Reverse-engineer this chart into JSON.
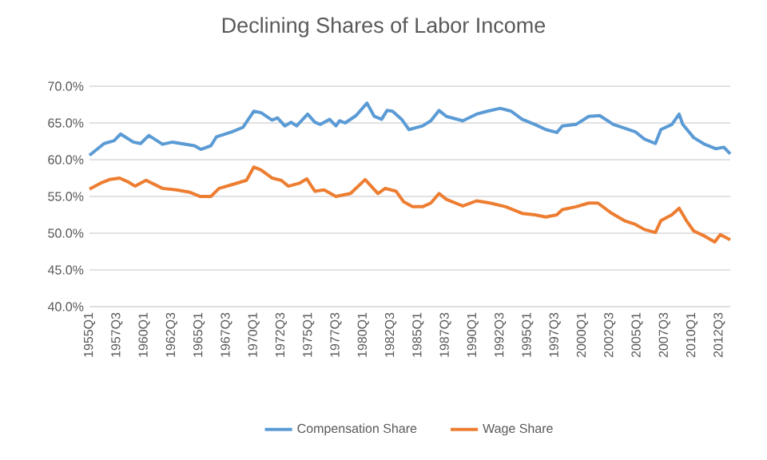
{
  "chart_data": {
    "type": "line",
    "title": "Declining Shares of Labor Income",
    "xlim": [
      "1955-01",
      "2013-07"
    ],
    "ylim": [
      40,
      70
    ],
    "xticks": [
      {
        "value": "1955-01",
        "label": "1955Q1"
      },
      {
        "value": "1957-07",
        "label": "1957Q3"
      },
      {
        "value": "1960-01",
        "label": "1960Q1"
      },
      {
        "value": "1962-07",
        "label": "1962Q3"
      },
      {
        "value": "1965-01",
        "label": "1965Q1"
      },
      {
        "value": "1967-07",
        "label": "1967Q3"
      },
      {
        "value": "1970-01",
        "label": "1970Q1"
      },
      {
        "value": "1972-07",
        "label": "1972Q3"
      },
      {
        "value": "1975-01",
        "label": "1975Q1"
      },
      {
        "value": "1977-07",
        "label": "1977Q3"
      },
      {
        "value": "1980-01",
        "label": "1980Q1"
      },
      {
        "value": "1982-07",
        "label": "1982Q3"
      },
      {
        "value": "1985-01",
        "label": "1985Q1"
      },
      {
        "value": "1987-07",
        "label": "1987Q3"
      },
      {
        "value": "1990-01",
        "label": "1990Q1"
      },
      {
        "value": "1992-07",
        "label": "1992Q3"
      },
      {
        "value": "1995-01",
        "label": "1995Q1"
      },
      {
        "value": "1997-07",
        "label": "1997Q3"
      },
      {
        "value": "2000-01",
        "label": "2000Q1"
      },
      {
        "value": "2002-07",
        "label": "2002Q3"
      },
      {
        "value": "2005-01",
        "label": "2005Q1"
      },
      {
        "value": "2007-07",
        "label": "2007Q3"
      },
      {
        "value": "2010-01",
        "label": "2010Q1"
      },
      {
        "value": "2012-07",
        "label": "2012Q3"
      }
    ],
    "yticks": [
      {
        "value": 40,
        "label": "40.0%"
      },
      {
        "value": 45,
        "label": "45.0%"
      },
      {
        "value": 50,
        "label": "50.0%"
      },
      {
        "value": 55,
        "label": "55.0%"
      },
      {
        "value": 60,
        "label": "60.0%"
      },
      {
        "value": 65,
        "label": "65.0%"
      },
      {
        "value": 70,
        "label": "70.0%"
      }
    ],
    "grid": "y",
    "legend": "bottom",
    "marker": "none",
    "line_style": "solid",
    "series": [
      {
        "name": "Compensation Share",
        "color": "#5b9bd5",
        "x": [
          "1955-01",
          "1956-05",
          "1957-04",
          "1957-11",
          "1959-01",
          "1959-09",
          "1960-06",
          "1961-09",
          "1962-08",
          "1964-08",
          "1965-03",
          "1966-02",
          "1966-08",
          "1968-01",
          "1969-01",
          "1970-01",
          "1970-09",
          "1971-09",
          "1972-03",
          "1972-11",
          "1973-06",
          "1973-12",
          "1974-12",
          "1975-08",
          "1976-02",
          "1976-12",
          "1977-07",
          "1977-11",
          "1978-05",
          "1979-05",
          "1980-05",
          "1981-01",
          "1981-09",
          "1982-03",
          "1982-09",
          "1983-07",
          "1984-03",
          "1985-06",
          "1986-03",
          "1986-12",
          "1987-08",
          "1989-02",
          "1990-05",
          "1991-05",
          "1992-07",
          "1993-07",
          "1994-07",
          "1995-09",
          "1996-09",
          "1997-09",
          "1998-03",
          "1999-06",
          "2000-08",
          "2001-08",
          "2002-11",
          "2003-11",
          "2004-11",
          "2005-09",
          "2006-09",
          "2007-03",
          "2008-03",
          "2008-11",
          "2009-03",
          "2010-03",
          "2011-03",
          "2012-03",
          "2012-12",
          "2013-07"
        ],
        "values": [
          60.6,
          62.2,
          62.6,
          63.5,
          62.4,
          62.2,
          63.3,
          62.1,
          62.4,
          61.9,
          61.4,
          61.9,
          63.1,
          63.8,
          64.4,
          66.6,
          66.4,
          65.4,
          65.7,
          64.6,
          65.1,
          64.6,
          66.2,
          65.1,
          64.8,
          65.5,
          64.6,
          65.3,
          65.0,
          66.0,
          67.7,
          65.9,
          65.5,
          66.7,
          66.6,
          65.5,
          64.1,
          64.6,
          65.3,
          66.7,
          65.9,
          65.3,
          66.2,
          66.6,
          67.0,
          66.6,
          65.5,
          64.8,
          64.1,
          63.7,
          64.6,
          64.8,
          65.9,
          66.0,
          64.8,
          64.3,
          63.8,
          62.8,
          62.2,
          64.1,
          64.8,
          66.2,
          64.8,
          63.0,
          62.1,
          61.5,
          61.7,
          60.8
        ]
      },
      {
        "name": "Wage Share",
        "color": "#ed7d31",
        "x": [
          "1955-01",
          "1956-01",
          "1956-11",
          "1957-10",
          "1958-07",
          "1959-03",
          "1960-03",
          "1961-09",
          "1962-12",
          "1964-02",
          "1965-02",
          "1966-02",
          "1966-11",
          "1968-01",
          "1969-05",
          "1970-01",
          "1970-09",
          "1971-09",
          "1972-07",
          "1973-03",
          "1974-03",
          "1974-11",
          "1975-08",
          "1976-06",
          "1977-07",
          "1978-11",
          "1980-03",
          "1981-05",
          "1982-01",
          "1983-01",
          "1983-09",
          "1984-07",
          "1985-06",
          "1986-03",
          "1986-12",
          "1987-08",
          "1989-02",
          "1990-05",
          "1991-08",
          "1993-01",
          "1994-07",
          "1995-09",
          "1996-09",
          "1997-09",
          "1998-03",
          "1999-06",
          "2000-08",
          "2001-06",
          "2002-08",
          "2003-11",
          "2004-11",
          "2005-09",
          "2006-09",
          "2007-03",
          "2008-03",
          "2008-11",
          "2009-07",
          "2010-03",
          "2011-03",
          "2012-02",
          "2012-08",
          "2013-07"
        ],
        "values": [
          56.0,
          56.8,
          57.3,
          57.5,
          57.0,
          56.4,
          57.2,
          56.1,
          55.9,
          55.6,
          55.0,
          55.0,
          56.1,
          56.6,
          57.2,
          59.0,
          58.6,
          57.5,
          57.2,
          56.4,
          56.8,
          57.4,
          55.7,
          55.9,
          55.0,
          55.4,
          57.3,
          55.4,
          56.1,
          55.7,
          54.3,
          53.6,
          53.6,
          54.1,
          55.4,
          54.6,
          53.7,
          54.4,
          54.1,
          53.6,
          52.7,
          52.5,
          52.2,
          52.5,
          53.2,
          53.6,
          54.1,
          54.1,
          52.8,
          51.7,
          51.2,
          50.5,
          50.1,
          51.7,
          52.5,
          53.4,
          51.7,
          50.3,
          49.6,
          48.8,
          49.8,
          49.1
        ]
      }
    ]
  }
}
